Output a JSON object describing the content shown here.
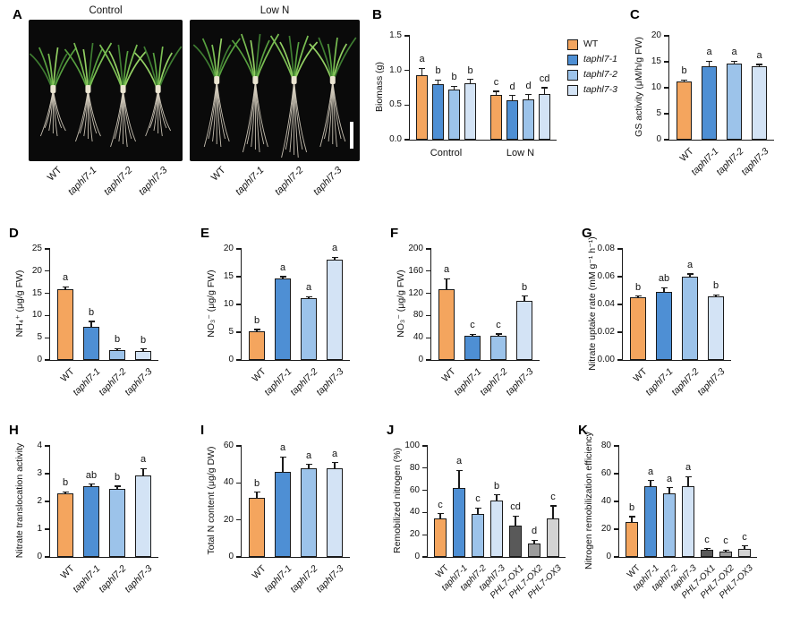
{
  "palette": {
    "orange": "#F4A55E",
    "blue1": "#4E8FD4",
    "blue2": "#9CC3EA",
    "blue3": "#D3E3F5",
    "gray1": "#595959",
    "gray2": "#9C9C9C",
    "gray3": "#D2D2D2",
    "axis": "#1a1a1a"
  },
  "panel_a": {
    "letter": "A",
    "photos": [
      {
        "title": "Control",
        "labels": [
          "WT",
          "taphl7-1",
          "taphl7-2",
          "taphl7-3"
        ]
      },
      {
        "title": "Low N",
        "labels": [
          "WT",
          "taphl7-1",
          "taphl7-2",
          "taphl7-3"
        ]
      }
    ]
  },
  "chart_data": [
    {
      "id": "B",
      "letter": "B",
      "type": "bar",
      "ylabel": "Biomass (g)",
      "ylim": [
        0,
        1.5
      ],
      "yticks": [
        0,
        0.5,
        1.0,
        1.5
      ],
      "ytick_labels": [
        "0.0",
        "0.5",
        "1.0",
        "1.5"
      ],
      "group_labels": [
        "Control",
        "Low N"
      ],
      "categories": [
        "WT",
        "taphl7-1",
        "taphl7-2",
        "taphl7-3"
      ],
      "colors": [
        "orange",
        "blue1",
        "blue2",
        "blue3"
      ],
      "values": [
        [
          0.93,
          0.8,
          0.73,
          0.82
        ],
        [
          0.65,
          0.57,
          0.58,
          0.66
        ]
      ],
      "errors": [
        [
          0.1,
          0.06,
          0.04,
          0.05
        ],
        [
          0.05,
          0.07,
          0.07,
          0.09
        ]
      ],
      "letters": [
        [
          "a",
          "b",
          "b",
          "b"
        ],
        [
          "c",
          "d",
          "d",
          "cd"
        ]
      ],
      "legend": [
        {
          "label": "WT",
          "color": "orange",
          "italic": false
        },
        {
          "label": "taphl7-1",
          "color": "blue1",
          "italic": true
        },
        {
          "label": "taphl7-2",
          "color": "blue2",
          "italic": true
        },
        {
          "label": "taphl7-3",
          "color": "blue3",
          "italic": true
        }
      ]
    },
    {
      "id": "C",
      "letter": "C",
      "type": "bar",
      "ylabel": "GS activity (μM/h/g FW)",
      "ylim": [
        0,
        20
      ],
      "yticks": [
        0,
        5,
        10,
        15,
        20
      ],
      "ytick_labels": [
        "0",
        "5",
        "10",
        "15",
        "20"
      ],
      "categories": [
        "WT",
        "taphl7-1",
        "taphl7-2",
        "taphl7-3"
      ],
      "italics": [
        false,
        true,
        true,
        true
      ],
      "colors": [
        "orange",
        "blue1",
        "blue2",
        "blue3"
      ],
      "values": [
        11.2,
        14.2,
        14.7,
        14.2
      ],
      "errors": [
        0.3,
        0.9,
        0.4,
        0.3
      ],
      "letters": [
        "b",
        "a",
        "a",
        "a"
      ]
    },
    {
      "id": "D",
      "letter": "D",
      "type": "bar",
      "ylabel": "NH₄⁺ (μg/g FW)",
      "ylim": [
        0,
        25
      ],
      "yticks": [
        0,
        5,
        10,
        15,
        20,
        25
      ],
      "ytick_labels": [
        "0",
        "5",
        "10",
        "15",
        "20",
        "25"
      ],
      "categories": [
        "WT",
        "taphl7-1",
        "taphl7-2",
        "taphl7-3"
      ],
      "italics": [
        false,
        true,
        true,
        true
      ],
      "colors": [
        "orange",
        "blue1",
        "blue2",
        "blue3"
      ],
      "values": [
        16.0,
        7.4,
        2.2,
        2.1
      ],
      "errors": [
        0.5,
        1.3,
        0.4,
        0.4
      ],
      "letters": [
        "a",
        "b",
        "b",
        "b"
      ]
    },
    {
      "id": "E",
      "letter": "E",
      "type": "bar",
      "ylabel": "NO₃⁻ (μg/g FW)",
      "ylim": [
        0,
        20
      ],
      "yticks": [
        0,
        5,
        10,
        15,
        20
      ],
      "ytick_labels": [
        "0",
        "5",
        "10",
        "15",
        "20"
      ],
      "categories": [
        "WT",
        "taphl7-1",
        "taphl7-2",
        "taphl7-3"
      ],
      "italics": [
        false,
        true,
        true,
        true
      ],
      "colors": [
        "orange",
        "blue1",
        "blue2",
        "blue3"
      ],
      "values": [
        5.2,
        14.6,
        11.1,
        18.0
      ],
      "errors": [
        0.3,
        0.4,
        0.3,
        0.5
      ],
      "letters": [
        "b",
        "a",
        "a",
        "a"
      ]
    },
    {
      "id": "F",
      "letter": "F",
      "type": "bar",
      "ylabel": "NO₃⁻ (μg/g FW)",
      "ylim": [
        0,
        200
      ],
      "yticks": [
        0,
        40,
        80,
        120,
        160,
        200
      ],
      "ytick_labels": [
        "0",
        "40",
        "80",
        "120",
        "160",
        "200"
      ],
      "categories": [
        "WT",
        "taphl7-1",
        "taphl7-2",
        "taphl7-3"
      ],
      "italics": [
        false,
        true,
        true,
        true
      ],
      "colors": [
        "orange",
        "blue1",
        "blue2",
        "blue3"
      ],
      "values": [
        128,
        43,
        44,
        107
      ],
      "errors": [
        18,
        3,
        3,
        8
      ],
      "letters": [
        "a",
        "c",
        "c",
        "b"
      ]
    },
    {
      "id": "G",
      "letter": "G",
      "type": "bar",
      "ylabel": "Nitrate uptake rate (mM g⁻¹ h⁻¹)",
      "ylim": [
        0,
        0.08
      ],
      "yticks": [
        0,
        0.02,
        0.04,
        0.06,
        0.08
      ],
      "ytick_labels": [
        "0.00",
        "0.02",
        "0.04",
        "0.06",
        "0.08"
      ],
      "categories": [
        "WT",
        "taphl7-1",
        "taphl7-2",
        "taphl7-3"
      ],
      "italics": [
        false,
        true,
        true,
        true
      ],
      "colors": [
        "orange",
        "blue1",
        "blue2",
        "blue3"
      ],
      "values": [
        0.045,
        0.049,
        0.06,
        0.046
      ],
      "errors": [
        0.001,
        0.003,
        0.002,
        0.001
      ],
      "letters": [
        "b",
        "ab",
        "a",
        "b"
      ]
    },
    {
      "id": "H",
      "letter": "H",
      "type": "bar",
      "ylabel": "Nitrate translocation activity",
      "ylim": [
        0,
        4
      ],
      "yticks": [
        0,
        1,
        2,
        3,
        4
      ],
      "ytick_labels": [
        "0",
        "1",
        "2",
        "3",
        "4"
      ],
      "categories": [
        "WT",
        "taphl7-1",
        "taphl7-2",
        "taphl7-3"
      ],
      "italics": [
        false,
        true,
        true,
        true
      ],
      "colors": [
        "orange",
        "blue1",
        "blue2",
        "blue3"
      ],
      "values": [
        2.3,
        2.55,
        2.45,
        2.92
      ],
      "errors": [
        0.05,
        0.07,
        0.1,
        0.27
      ],
      "letters": [
        "b",
        "ab",
        "b",
        "a"
      ]
    },
    {
      "id": "I",
      "letter": "I",
      "type": "bar",
      "ylabel": "Total N content (μg/g DW)",
      "ylim": [
        0,
        60
      ],
      "yticks": [
        0,
        20,
        40,
        60
      ],
      "ytick_labels": [
        "0",
        "20",
        "40",
        "60"
      ],
      "categories": [
        "WT",
        "taphl7-1",
        "taphl7-2",
        "taphl7-3"
      ],
      "italics": [
        false,
        true,
        true,
        true
      ],
      "colors": [
        "orange",
        "blue1",
        "blue2",
        "blue3"
      ],
      "values": [
        32,
        46,
        48,
        48
      ],
      "errors": [
        3,
        8,
        2,
        3
      ],
      "letters": [
        "b",
        "a",
        "a",
        "a"
      ]
    },
    {
      "id": "J",
      "letter": "J",
      "type": "bar",
      "ylabel": "Remobilized nitrogen (%)",
      "ylim": [
        0,
        100
      ],
      "yticks": [
        0,
        20,
        40,
        60,
        80,
        100
      ],
      "ytick_labels": [
        "0",
        "20",
        "40",
        "60",
        "80",
        "100"
      ],
      "categories": [
        "WT",
        "taphl7-1",
        "taphl7-2",
        "taphl7-3",
        "PHL7-OX1",
        "PHL7-OX2",
        "PHL7-OX3"
      ],
      "italics": [
        false,
        true,
        true,
        true,
        true,
        true,
        true
      ],
      "colors": [
        "orange",
        "blue1",
        "blue2",
        "blue3",
        "gray1",
        "gray2",
        "gray3"
      ],
      "values": [
        35,
        62,
        39,
        51,
        28,
        12,
        35
      ],
      "errors": [
        4,
        16,
        5,
        5,
        9,
        3,
        11
      ],
      "letters": [
        "c",
        "a",
        "c",
        "b",
        "cd",
        "d",
        "c"
      ]
    },
    {
      "id": "K",
      "letter": "K",
      "type": "bar",
      "ylabel": "Nitrogen remobilization efficiency",
      "ylim": [
        0,
        80
      ],
      "yticks": [
        0,
        20,
        40,
        60,
        80
      ],
      "ytick_labels": [
        "0",
        "20",
        "40",
        "60",
        "80"
      ],
      "categories": [
        "WT",
        "taphl7-1",
        "taphl7-2",
        "taphl7-3",
        "PHL7-OX1",
        "PHL7-OX2",
        "PHL7-OX3"
      ],
      "italics": [
        false,
        true,
        true,
        true,
        true,
        true,
        true
      ],
      "colors": [
        "orange",
        "blue1",
        "blue2",
        "blue3",
        "gray1",
        "gray2",
        "gray3"
      ],
      "values": [
        25,
        51,
        46,
        51,
        5,
        4,
        6
      ],
      "errors": [
        4,
        4,
        4,
        7,
        1,
        1,
        2
      ],
      "letters": [
        "b",
        "a",
        "a",
        "a",
        "c",
        "c",
        "c"
      ]
    }
  ]
}
